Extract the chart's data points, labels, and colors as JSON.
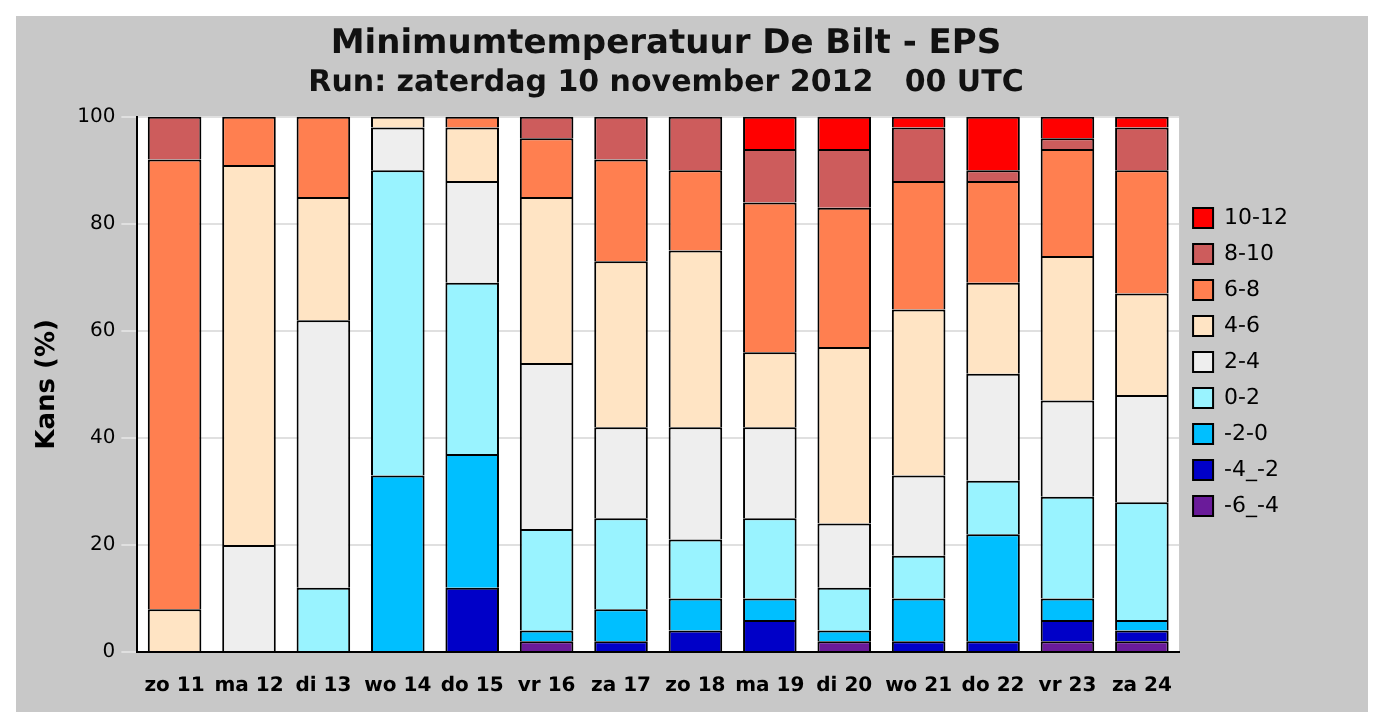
{
  "chart_data": {
    "type": "bar",
    "stacked": true,
    "title": "Minimumtemperatuur De Bilt - EPS",
    "subtitle": "Run: zaterdag 10 november 2012   00 UTC",
    "ylabel": "Kans (%)",
    "categories": [
      "zo 11",
      "ma 12",
      "di 13",
      "wo 14",
      "do 15",
      "vr 16",
      "za 17",
      "zo 18",
      "ma 19",
      "di 20",
      "wo 21",
      "do 22",
      "vr 23",
      "za 24"
    ],
    "series": [
      {
        "name": "-6_-4",
        "color": "#6a1b9a",
        "values": [
          0,
          0,
          0,
          0,
          0,
          2,
          0,
          0,
          0,
          2,
          0,
          0,
          2,
          2
        ]
      },
      {
        "name": "-4_-2",
        "color": "#0000c8",
        "values": [
          0,
          0,
          0,
          0,
          12,
          0,
          2,
          4,
          6,
          0,
          2,
          2,
          4,
          2
        ]
      },
      {
        "name": "-2-0",
        "color": "#00bfff",
        "values": [
          0,
          0,
          0,
          33,
          25,
          2,
          6,
          6,
          4,
          2,
          8,
          20,
          4,
          2
        ]
      },
      {
        "name": "0-2",
        "color": "#99f3ff",
        "values": [
          0,
          0,
          12,
          57,
          32,
          19,
          17,
          11,
          15,
          8,
          8,
          10,
          19,
          22
        ]
      },
      {
        "name": "2-4",
        "color": "#eeeeee",
        "values": [
          0,
          20,
          50,
          8,
          19,
          31,
          17,
          21,
          17,
          12,
          15,
          20,
          18,
          20
        ]
      },
      {
        "name": "4-6",
        "color": "#ffe4c4",
        "values": [
          8,
          71,
          23,
          2,
          10,
          31,
          31,
          33,
          14,
          33,
          31,
          17,
          27,
          19
        ]
      },
      {
        "name": "6-8",
        "color": "#ff7f50",
        "values": [
          84,
          9,
          15,
          0,
          2,
          11,
          19,
          15,
          28,
          26,
          24,
          19,
          20,
          23
        ]
      },
      {
        "name": "8-10",
        "color": "#cd5c5c",
        "values": [
          8,
          0,
          0,
          0,
          0,
          4,
          8,
          10,
          10,
          11,
          10,
          2,
          2,
          8
        ]
      },
      {
        "name": "10-12",
        "color": "#ff0000",
        "values": [
          0,
          0,
          0,
          0,
          0,
          0,
          0,
          0,
          6,
          6,
          2,
          10,
          4,
          2
        ]
      }
    ],
    "ylim": [
      0,
      100
    ],
    "yticks": [
      0,
      20,
      40,
      60,
      80,
      100
    ],
    "grid": "y",
    "legend": "right"
  }
}
